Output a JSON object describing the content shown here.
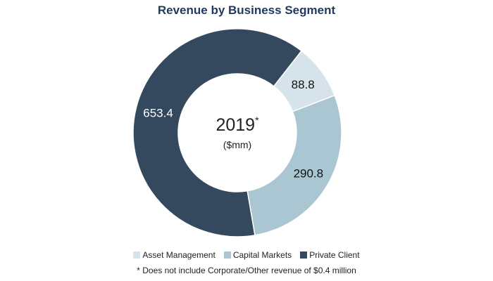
{
  "chart_data": {
    "type": "pie",
    "subtype": "donut",
    "title": "Revenue by Business Segment",
    "center_label": "2019",
    "center_superscript": "*",
    "center_sublabel": "($mm)",
    "categories": [
      "Asset Management",
      "Capital Markets",
      "Private Client"
    ],
    "values": [
      88.8,
      290.8,
      653.4
    ],
    "value_labels": [
      "88.8",
      "290.8",
      "653.4"
    ],
    "colors": [
      "#d6e3ea",
      "#a9c6d2",
      "#34495e"
    ],
    "legend_position": "bottom",
    "footnote": "* Does not include Corporate/Other revenue of $0.4 million"
  }
}
